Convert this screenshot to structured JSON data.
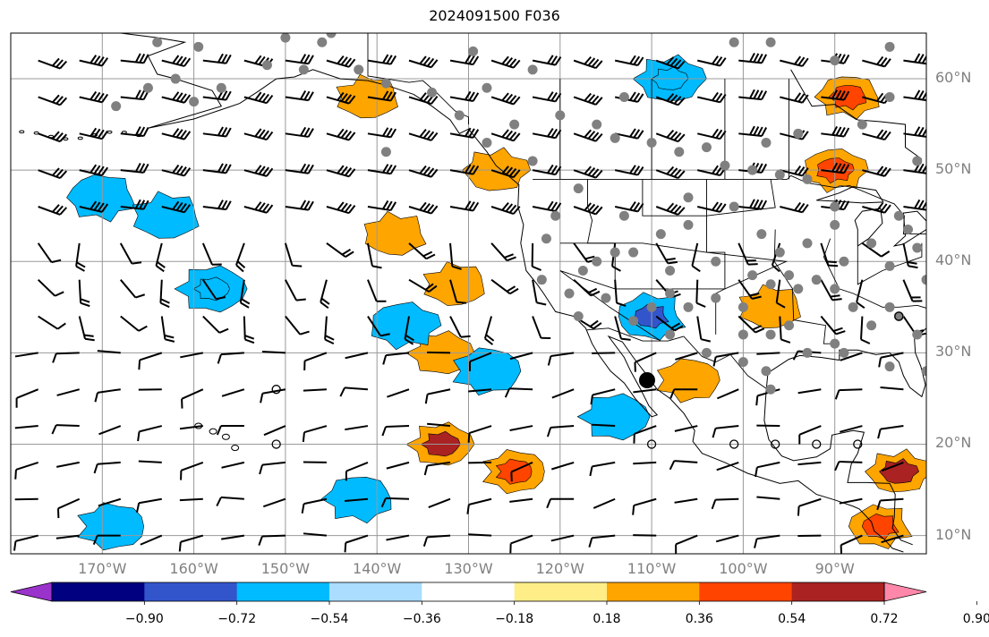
{
  "title": "2024091500 F036",
  "map": {
    "projection": "PlateCarree",
    "lon_range": [
      -180,
      -80
    ],
    "lat_range": [
      8,
      65
    ],
    "lon_ticks": [
      -170,
      -160,
      -150,
      -140,
      -130,
      -120,
      -110,
      -100,
      -90
    ],
    "lat_ticks": [
      10,
      20,
      30,
      40,
      50,
      60
    ],
    "lon_labels": [
      "170°W",
      "160°W",
      "150°W",
      "140°W",
      "130°W",
      "120°W",
      "110°W",
      "100°W",
      "90°W"
    ],
    "lat_labels": [
      "10°N",
      "20°N",
      "30°N",
      "40°N",
      "50°N",
      "60°N"
    ],
    "gridlines": true,
    "coastlines": true,
    "borders": true
  },
  "colorbar": {
    "orientation": "horizontal",
    "extend": "both",
    "tick_labels": [
      "−0.90",
      "−0.72",
      "−0.54",
      "−0.36",
      "−0.18",
      "0.18",
      "0.36",
      "0.54",
      "0.72",
      "0.90"
    ],
    "colors": [
      "#9933cc",
      "#000080",
      "#3355cc",
      "#00bbff",
      "#aaddff",
      "#ffffff",
      "#ffee88",
      "#ffa500",
      "#ff4400",
      "#aa2222",
      "#ff88aa"
    ]
  },
  "fields": {
    "positive_regions": [
      {
        "lon": -141,
        "lat": 58,
        "level": 0.36
      },
      {
        "lon": -127,
        "lat": 50,
        "level": 0.36
      },
      {
        "lon": -138,
        "lat": 43,
        "level": 0.36
      },
      {
        "lon": -131.5,
        "lat": 37.5,
        "level": 0.36
      },
      {
        "lon": -133,
        "lat": 20,
        "level": 0.72
      },
      {
        "lon": -125,
        "lat": 17,
        "level": 0.54
      },
      {
        "lon": -90,
        "lat": 50,
        "level": 0.54
      },
      {
        "lon": -88.5,
        "lat": 58,
        "level": 0.54
      },
      {
        "lon": -97,
        "lat": 35,
        "level": 0.36
      },
      {
        "lon": -83,
        "lat": 17,
        "level": 0.72
      },
      {
        "lon": -85,
        "lat": 11,
        "level": 0.54
      },
      {
        "lon": -106,
        "lat": 27,
        "level": 0.36
      },
      {
        "lon": -133,
        "lat": 30,
        "level": 0.36
      }
    ],
    "negative_regions": [
      {
        "lon": -158,
        "lat": 37,
        "level": -0.54
      },
      {
        "lon": -170,
        "lat": 47,
        "level": -0.36
      },
      {
        "lon": -163,
        "lat": 45,
        "level": -0.36
      },
      {
        "lon": -110,
        "lat": 34,
        "level": -0.72
      },
      {
        "lon": -108,
        "lat": 60,
        "level": -0.54
      },
      {
        "lon": -137,
        "lat": 33,
        "level": -0.36
      },
      {
        "lon": -128,
        "lat": 28,
        "level": -0.36
      },
      {
        "lon": -114,
        "lat": 23,
        "level": -0.36
      },
      {
        "lon": -142,
        "lat": 14,
        "level": -0.36
      },
      {
        "lon": -169,
        "lat": 11,
        "level": -0.36
      }
    ]
  },
  "wind_barbs": {
    "rows_lat": [
      62,
      58,
      54,
      50,
      46,
      42,
      38,
      34,
      30,
      26,
      22,
      18,
      14,
      10
    ],
    "cols_lon": [
      -177,
      -172.5,
      -168,
      -163.5,
      -159,
      -154.5,
      -150,
      -145.5,
      -141,
      -136.5,
      -132,
      -127.5,
      -123,
      -118.5,
      -114,
      -109.5,
      -105,
      -100.5,
      -96,
      -91.5,
      -87,
      -82.5
    ]
  },
  "stations": {
    "filled": [
      [
        -164,
        64
      ],
      [
        -162,
        60
      ],
      [
        -159.5,
        63.5
      ],
      [
        -165,
        59
      ],
      [
        -168.5,
        57
      ],
      [
        -157,
        59
      ],
      [
        -152,
        61.5
      ],
      [
        -150,
        64.5
      ],
      [
        -146,
        64
      ],
      [
        -142,
        61
      ],
      [
        -139,
        59.5
      ],
      [
        -134,
        58.5
      ],
      [
        -128,
        59
      ],
      [
        -123,
        61
      ],
      [
        -125,
        55
      ],
      [
        -120,
        56
      ],
      [
        -113,
        58
      ],
      [
        -116,
        55
      ],
      [
        -114,
        53.5
      ],
      [
        -110,
        53
      ],
      [
        -107,
        52
      ],
      [
        -104,
        52.5
      ],
      [
        -102,
        50.5
      ],
      [
        -99,
        50
      ],
      [
        -96,
        49.5
      ],
      [
        -93,
        49
      ],
      [
        -97.5,
        53
      ],
      [
        -94,
        54
      ],
      [
        -87,
        55
      ],
      [
        -84,
        58
      ],
      [
        -81,
        51
      ],
      [
        -90,
        62
      ],
      [
        -84,
        63.5
      ],
      [
        -101,
        64
      ],
      [
        -97,
        64
      ],
      [
        -118,
        48
      ],
      [
        -120.5,
        45
      ],
      [
        -121.5,
        42.5
      ],
      [
        -122,
        38
      ],
      [
        -118,
        34
      ],
      [
        -115,
        36
      ],
      [
        -112,
        41
      ],
      [
        -109,
        43
      ],
      [
        -113,
        45
      ],
      [
        -106,
        47
      ],
      [
        -101,
        46
      ],
      [
        -98,
        43
      ],
      [
        -96,
        41
      ],
      [
        -93,
        42
      ],
      [
        -90,
        44
      ],
      [
        -86,
        42
      ],
      [
        -89,
        40
      ],
      [
        -84,
        39.5
      ],
      [
        -90,
        37
      ],
      [
        -94,
        37
      ],
      [
        -97,
        37.5
      ],
      [
        -100,
        35
      ],
      [
        -103,
        40
      ],
      [
        -108,
        39
      ],
      [
        -110,
        35
      ],
      [
        -112,
        33.5
      ],
      [
        -108,
        32
      ],
      [
        -104,
        30
      ],
      [
        -100,
        29
      ],
      [
        -97.5,
        28
      ],
      [
        -97,
        26
      ],
      [
        -93,
        30
      ],
      [
        -90,
        31
      ],
      [
        -86,
        33
      ],
      [
        -88,
        35
      ],
      [
        -83,
        34
      ],
      [
        -81,
        32
      ],
      [
        -80,
        28
      ],
      [
        -84,
        28.5
      ],
      [
        -89,
        30
      ],
      [
        -95,
        33
      ],
      [
        -97,
        32
      ],
      [
        -100,
        32
      ],
      [
        -103,
        36
      ],
      [
        -106,
        35
      ],
      [
        -99,
        38.5
      ],
      [
        -95,
        38.5
      ],
      [
        -92,
        38
      ],
      [
        -84,
        35
      ],
      [
        -80,
        38
      ],
      [
        -81,
        41.5
      ],
      [
        -82,
        43.5
      ],
      [
        -90,
        46
      ],
      [
        -83,
        45
      ],
      [
        -106,
        44
      ],
      [
        -114,
        41
      ],
      [
        -117.5,
        39
      ],
      [
        -119,
        36.5
      ],
      [
        -116,
        40
      ],
      [
        -108,
        36.5
      ],
      [
        -123,
        51
      ],
      [
        -128,
        53
      ],
      [
        -131,
        56
      ],
      [
        -148,
        61
      ],
      [
        -139,
        52
      ],
      [
        -160,
        57.5
      ],
      [
        -145,
        65
      ],
      [
        -129.5,
        63
      ]
    ],
    "filled_large": [
      [
        -110.5,
        27
      ]
    ],
    "open": [
      [
        -151,
        26
      ],
      [
        -151,
        20
      ],
      [
        -110,
        20
      ],
      [
        -101,
        20
      ],
      [
        -96.5,
        20
      ],
      [
        -92,
        20
      ],
      [
        -87.5,
        20
      ],
      [
        -83,
        34
      ]
    ]
  }
}
